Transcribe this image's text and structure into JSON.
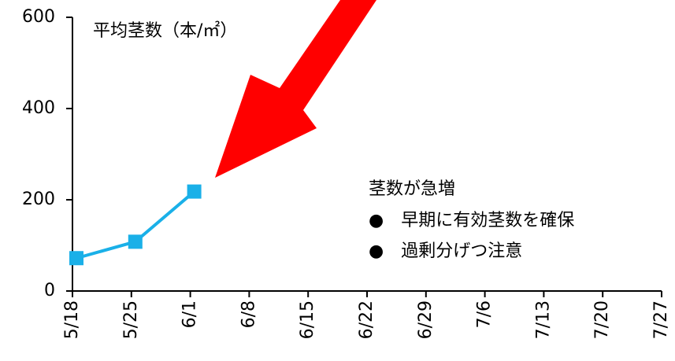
{
  "chart_data": {
    "type": "line",
    "title": "平均茎数（本/㎡）",
    "annotations": [
      "茎数が急増",
      "●　早期に有効茎数を確保",
      "●　過剰分げつ注意"
    ],
    "categories": [
      "5/18",
      "5/25",
      "6/1",
      "6/8",
      "6/15",
      "6/22",
      "6/29",
      "7/6",
      "7/13",
      "7/20",
      "7/27"
    ],
    "series": [
      {
        "name": "平均茎数",
        "color": "#1ab0e8",
        "values": [
          72,
          108,
          218,
          null,
          null,
          null,
          null,
          null,
          null,
          null,
          null
        ]
      }
    ],
    "ylim": [
      0,
      600
    ],
    "yticks": [
      0,
      200,
      400,
      600
    ],
    "grid": false
  }
}
